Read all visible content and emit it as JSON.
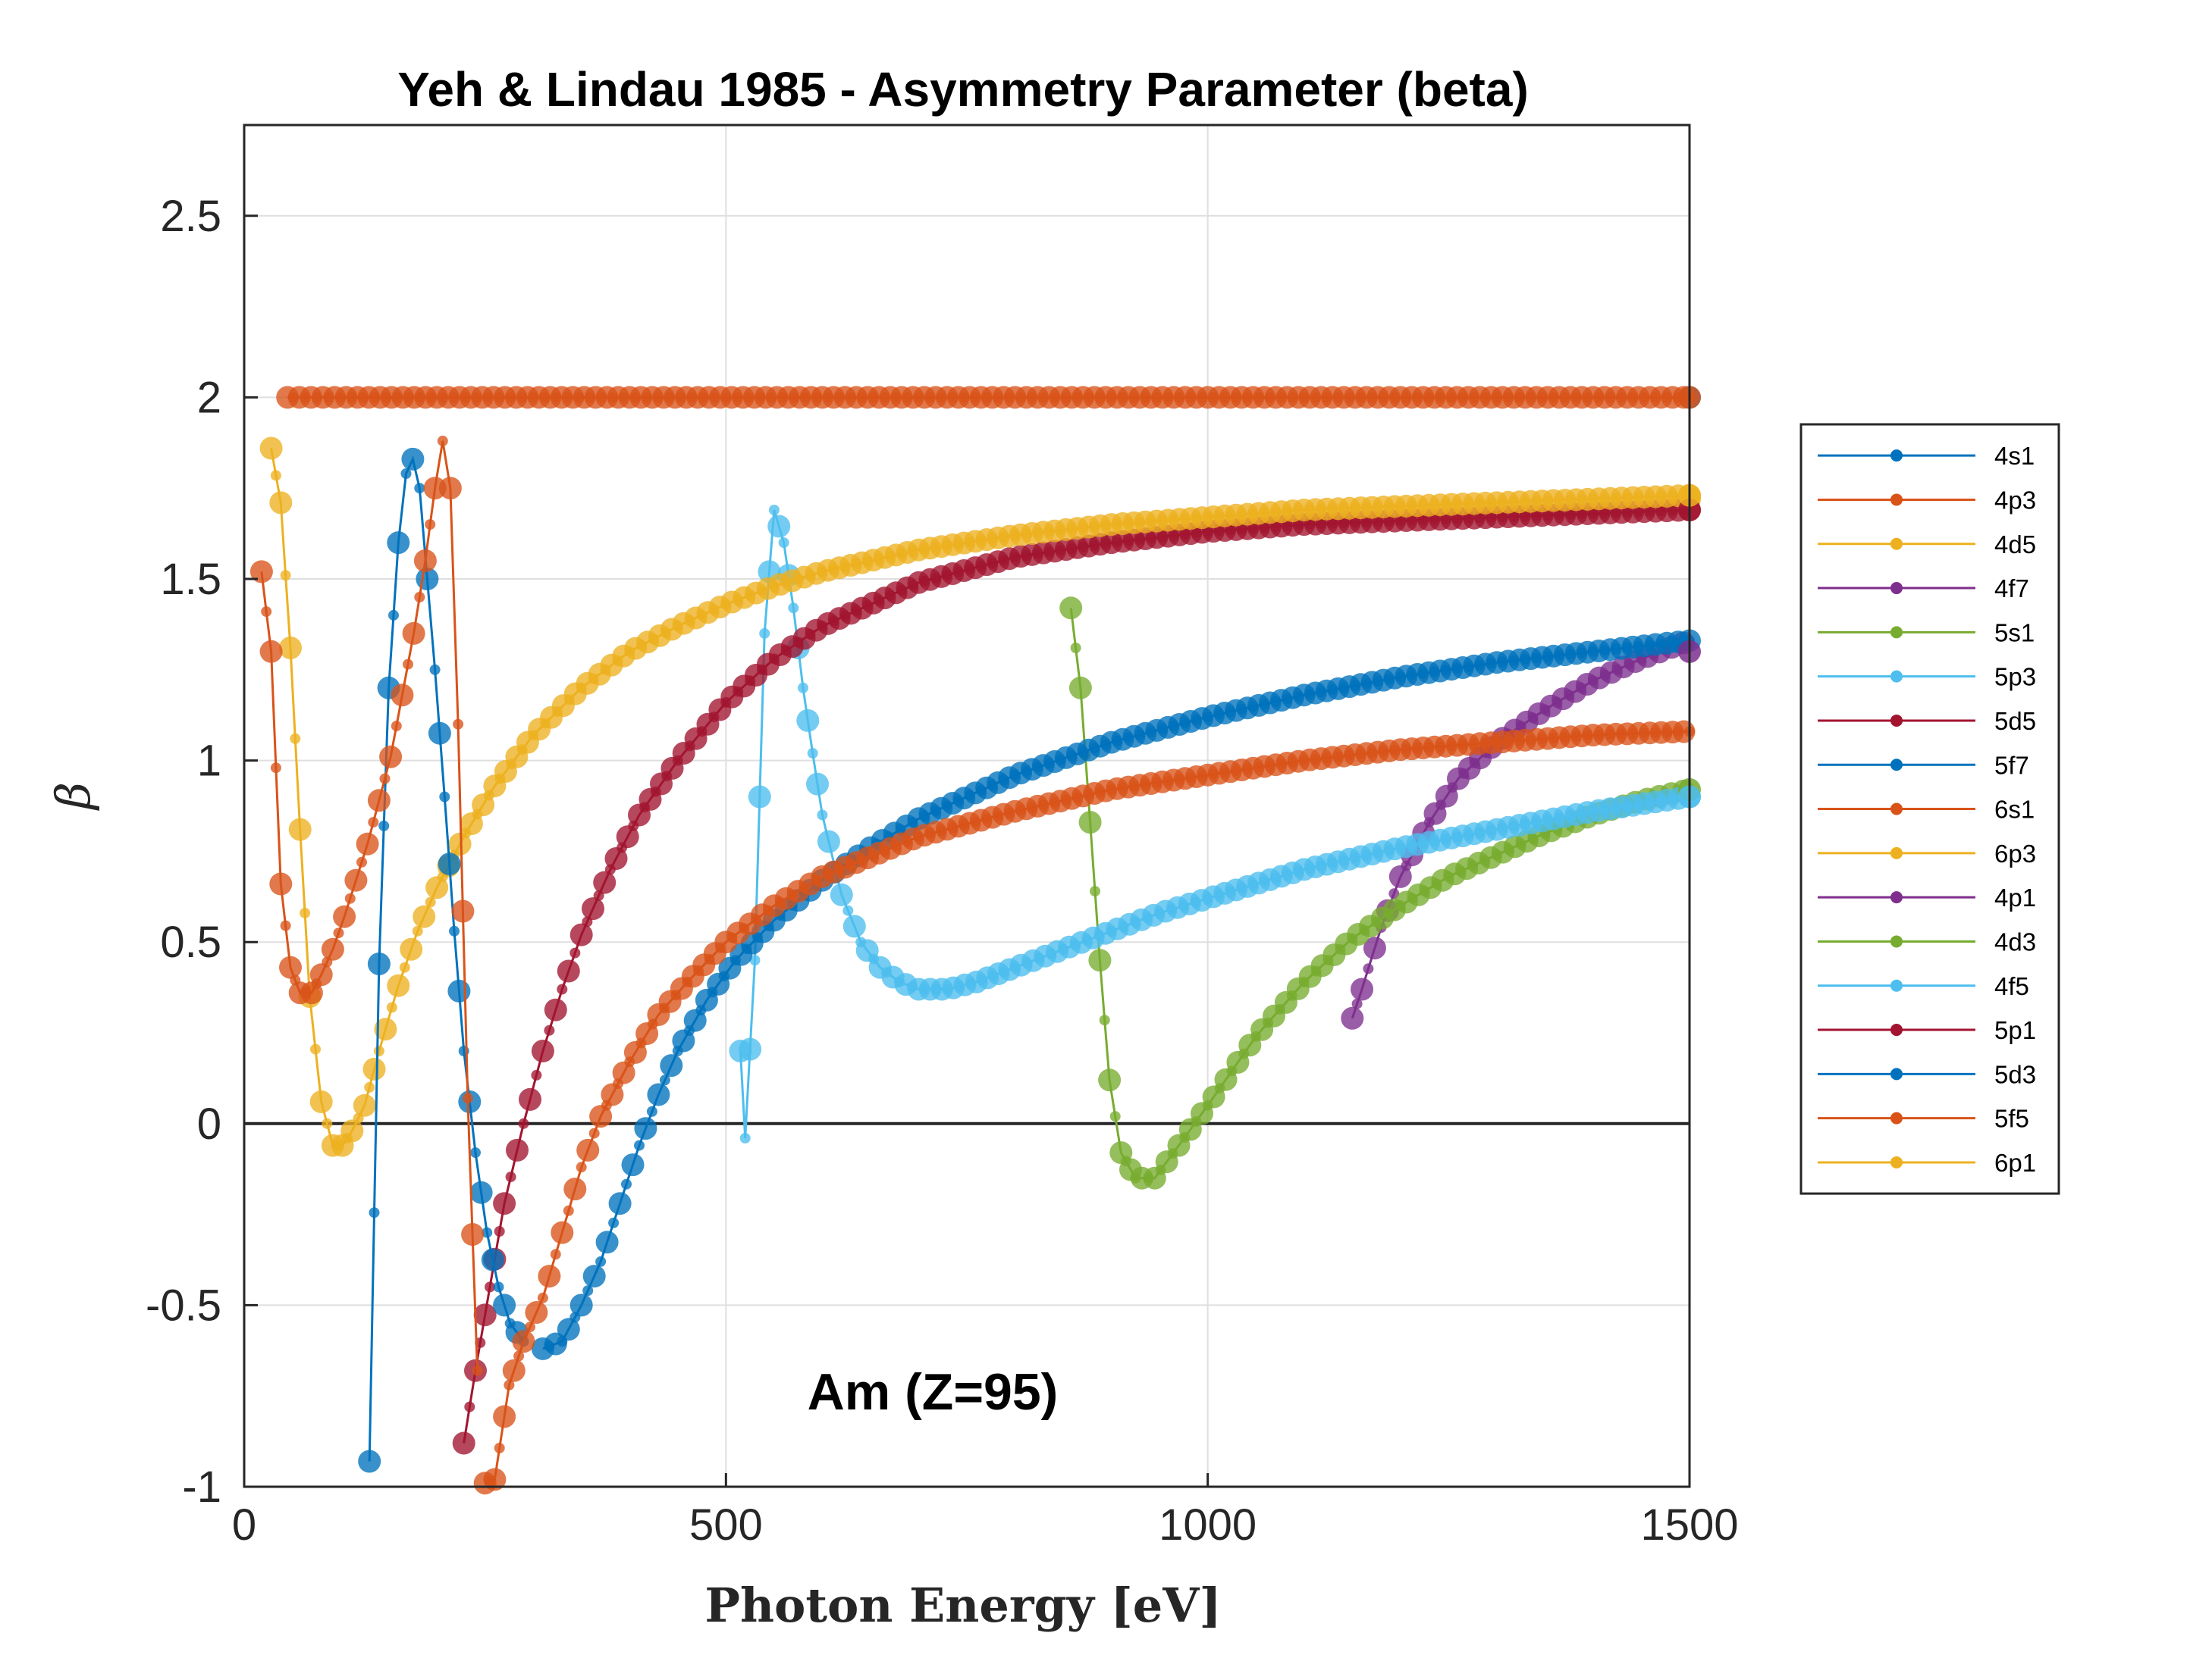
{
  "chart_data": {
    "type": "line",
    "title": "Yeh & Lindau 1985 - Asymmetry Parameter (beta)",
    "xlabel": "Photon Energy [eV]",
    "ylabel": "β",
    "xlim": [
      0,
      1500
    ],
    "ylim": [
      -1,
      2.75
    ],
    "xticks": [
      0,
      500,
      1000,
      1500
    ],
    "xtick_labels": [
      "0",
      "500",
      "1000",
      "1500"
    ],
    "yticks": [
      -1,
      -0.5,
      0,
      0.5,
      1,
      1.5,
      2,
      2.5
    ],
    "ytick_labels": [
      "-1",
      "-0.5",
      "0",
      "0.5",
      "1",
      "1.5",
      "2",
      "2.5"
    ],
    "grid": true,
    "legend_position": "right, outside plot",
    "annotation": "Am (Z=95)",
    "colors": {
      "blue": "#0072BD",
      "orange": "#D95319",
      "yellow": "#EDB120",
      "purple": "#7E2F8E",
      "green": "#77AC30",
      "cyan": "#4DBEEE",
      "maroon": "#A2142F"
    },
    "series": [
      {
        "name": "4s1",
        "color": "#0072BD",
        "x": [
          1500
        ],
        "y": [
          2.0
        ]
      },
      {
        "name": "4p3",
        "color": "#D95319",
        "x": [
          1500
        ],
        "y": [
          2.0
        ]
      },
      {
        "name": "4d5",
        "color": "#EDB120",
        "x": [
          1500
        ],
        "y": [
          1.72
        ]
      },
      {
        "name": "4f7",
        "color": "#7E2F8E",
        "x": [
          1150,
          1160,
          1180,
          1200,
          1230,
          1260,
          1300,
          1350,
          1400,
          1450,
          1500
        ],
        "y": [
          0.29,
          0.37,
          0.54,
          0.68,
          0.83,
          0.95,
          1.05,
          1.14,
          1.22,
          1.28,
          1.33
        ]
      },
      {
        "name": "5s1",
        "color": "#77AC30",
        "x": [
          858,
          868,
          878,
          888,
          898,
          910,
          925,
          945,
          970,
          1000,
          1050,
          1100,
          1150,
          1200,
          1250,
          1300,
          1350,
          1400,
          1450,
          1500
        ],
        "y": [
          1.42,
          1.2,
          0.83,
          0.45,
          0.12,
          -0.08,
          -0.15,
          -0.15,
          -0.06,
          0.05,
          0.24,
          0.39,
          0.51,
          0.6,
          0.68,
          0.74,
          0.8,
          0.85,
          0.89,
          0.92
        ]
      },
      {
        "name": "5p3",
        "color": "#4DBEEE",
        "x": [
          515,
          520,
          530,
          540,
          550,
          560,
          570,
          580,
          590,
          600,
          620,
          640,
          660,
          680,
          700,
          730,
          760,
          800,
          850,
          900,
          950,
          1000,
          1100,
          1200,
          1300,
          1400,
          1500
        ],
        "y": [
          0.2,
          -0.04,
          0.45,
          1.35,
          1.69,
          1.6,
          1.42,
          1.2,
          1.02,
          0.85,
          0.63,
          0.5,
          0.43,
          0.39,
          0.37,
          0.37,
          0.39,
          0.43,
          0.48,
          0.53,
          0.58,
          0.62,
          0.7,
          0.76,
          0.81,
          0.86,
          0.9
        ]
      },
      {
        "name": "5d5",
        "color": "#A2142F",
        "x": [
          228,
          240,
          255,
          270,
          290,
          310,
          330,
          350,
          380,
          410,
          450,
          500,
          550,
          600,
          700,
          800,
          900,
          1000,
          1100,
          1200,
          1300,
          1400,
          1500
        ],
        "y": [
          -0.88,
          -0.68,
          -0.45,
          -0.22,
          0.0,
          0.2,
          0.37,
          0.52,
          0.7,
          0.85,
          1.0,
          1.16,
          1.28,
          1.37,
          1.49,
          1.56,
          1.6,
          1.63,
          1.65,
          1.66,
          1.67,
          1.68,
          1.69
        ]
      },
      {
        "name": "5f7",
        "color": "#0072BD",
        "x": [
          310,
          330,
          350,
          370,
          390,
          410,
          430,
          450,
          480,
          510,
          550,
          600,
          650,
          700,
          800,
          900,
          1000,
          1100,
          1200,
          1300,
          1400,
          1500
        ],
        "y": [
          -0.62,
          -0.6,
          -0.5,
          -0.38,
          -0.22,
          -0.06,
          0.08,
          0.2,
          0.34,
          0.45,
          0.56,
          0.67,
          0.76,
          0.84,
          0.96,
          1.05,
          1.12,
          1.18,
          1.23,
          1.27,
          1.3,
          1.33
        ]
      },
      {
        "name": "6s1",
        "color": "#D95319",
        "x": [
          45,
          100,
          200,
          300,
          400,
          500,
          600,
          700,
          800,
          900,
          1000,
          1100,
          1200,
          1300,
          1400,
          1500
        ],
        "y": [
          2.0,
          2.0,
          2.0,
          2.0,
          2.0,
          2.0,
          2.0,
          2.0,
          2.0,
          2.0,
          2.0,
          2.0,
          2.0,
          2.0,
          2.0,
          2.0
        ]
      },
      {
        "name": "6p3",
        "color": "#EDB120",
        "x": [
          28,
          38,
          48,
          58,
          68,
          80,
          92,
          102,
          112,
          125,
          140,
          160,
          180,
          200,
          230,
          260,
          300,
          350,
          400,
          450,
          500,
          550,
          600,
          700,
          800,
          900,
          1000,
          1100,
          1200,
          1300,
          1400,
          1500
        ],
        "y": [
          1.86,
          1.71,
          1.31,
          0.81,
          0.35,
          0.06,
          -0.06,
          -0.06,
          -0.02,
          0.05,
          0.2,
          0.38,
          0.53,
          0.65,
          0.8,
          0.93,
          1.07,
          1.2,
          1.3,
          1.37,
          1.43,
          1.48,
          1.52,
          1.58,
          1.62,
          1.65,
          1.67,
          1.69,
          1.7,
          1.71,
          1.72,
          1.73
        ]
      },
      {
        "name": "4p1",
        "color": "#7E2F8E",
        "x": [
          1500
        ],
        "y": [
          1.3
        ]
      },
      {
        "name": "4d3",
        "color": "#77AC30",
        "x": [
          1500
        ],
        "y": [
          0.92
        ]
      },
      {
        "name": "4f5",
        "color": "#4DBEEE",
        "x": [
          1500
        ],
        "y": [
          0.9
        ]
      },
      {
        "name": "5p1",
        "color": "#A2142F",
        "x": [
          1500
        ],
        "y": [
          1.69
        ]
      },
      {
        "name": "5d3",
        "color": "#0072BD",
        "x": [
          130,
          140,
          150,
          160,
          168,
          175,
          182,
          190,
          198,
          208,
          218,
          228,
          240,
          252,
          264,
          276,
          290
        ],
        "y": [
          -0.93,
          0.44,
          1.2,
          1.6,
          1.79,
          1.83,
          1.75,
          1.5,
          1.25,
          0.9,
          0.53,
          0.2,
          -0.08,
          -0.3,
          -0.45,
          -0.55,
          -0.6
        ]
      },
      {
        "name": "5f5",
        "color": "#D95319",
        "x": [
          250,
          260,
          275,
          290,
          310,
          330,
          350,
          370,
          400,
          430,
          460,
          500,
          550,
          600,
          700,
          800,
          900,
          1000,
          1100,
          1200,
          1300,
          1400,
          1500
        ],
        "y": [
          -0.99,
          -0.98,
          -0.72,
          -0.6,
          -0.48,
          -0.3,
          -0.12,
          0.02,
          0.17,
          0.3,
          0.39,
          0.5,
          0.6,
          0.68,
          0.79,
          0.86,
          0.92,
          0.96,
          1.0,
          1.03,
          1.05,
          1.07,
          1.08
        ]
      },
      {
        "name": "6p1",
        "color": "#EDB120",
        "x": [
          1500
        ],
        "y": [
          1.73
        ]
      },
      {
        "name": "",
        "color": "#D95319",
        "x": [
          18,
          28,
          38,
          48,
          58,
          70,
          80,
          92,
          104,
          116,
          128,
          140,
          152,
          164,
          176,
          188,
          198,
          206,
          214,
          222,
          232,
          242
        ],
        "y": [
          1.52,
          1.3,
          0.66,
          0.43,
          0.36,
          0.36,
          0.41,
          0.48,
          0.57,
          0.67,
          0.77,
          0.89,
          1.01,
          1.18,
          1.35,
          1.55,
          1.75,
          1.88,
          1.75,
          1.1,
          0.07,
          -0.68
        ]
      }
    ]
  }
}
